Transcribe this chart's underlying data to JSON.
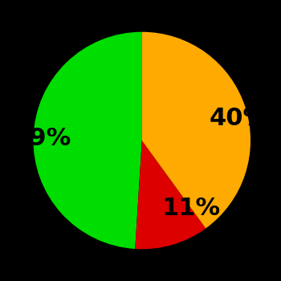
{
  "slices": [
    49,
    11,
    40
  ],
  "labels": [
    "49%",
    "11%",
    "40%"
  ],
  "colors": [
    "#00dd00",
    "#dd0000",
    "#ffaa00"
  ],
  "background_color": "#000000",
  "startangle": 90,
  "counterclock": true,
  "figsize": [
    3.5,
    3.5
  ],
  "dpi": 100,
  "label_fontsize": 22,
  "label_fontweight": "bold",
  "labeldistance": 0.65
}
